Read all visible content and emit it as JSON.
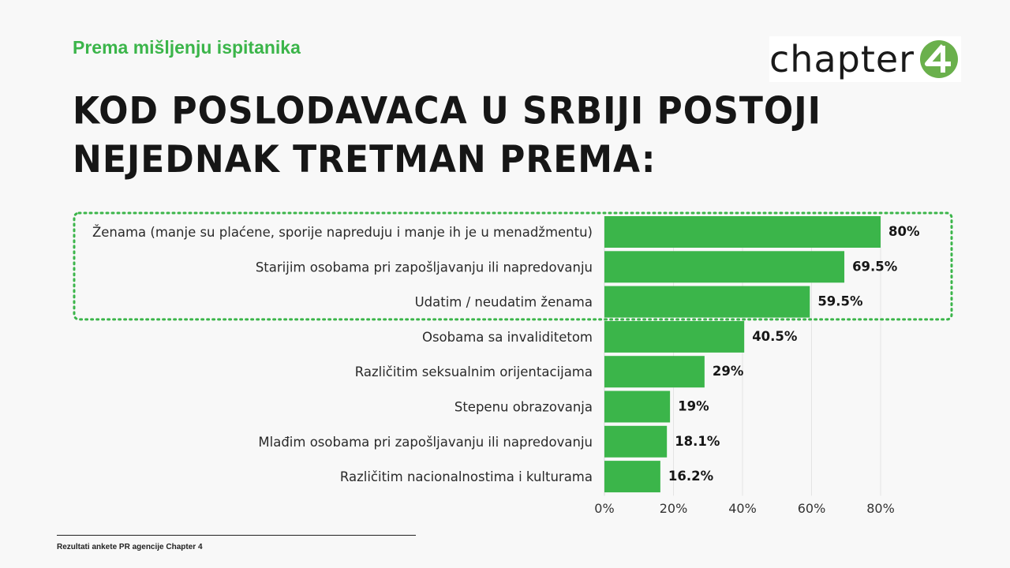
{
  "header": {
    "subtitle": "Prema mišljenju ispitanika",
    "title_line1": "KOD POSLODAVACA U SRBIJI POSTOJI",
    "title_line2": "NEJEDNAK TRETMAN PREMA:"
  },
  "logo": {
    "word": "chapter",
    "numeral": "4",
    "accent_color": "#6ab04c"
  },
  "footer": {
    "source": "Rezultati ankete PR agencije Chapter 4"
  },
  "colors": {
    "bar": "#3bb54a",
    "highlight": "#3bb54a",
    "text": "#161616"
  },
  "chart_data": {
    "type": "bar",
    "orientation": "horizontal",
    "categories": [
      "Ženama (manje su plaćene, sporije napreduju i manje ih je u menadžmentu)",
      "Starijim osobama pri zapošljavanju ili napredovanju",
      "Udatim / neudatim ženama",
      "Osobama sa invaliditetom",
      "Različitim seksualnim orijentacijama",
      "Stepenu obrazovanja",
      "Mlađim osobama pri zapošljavanju ili napredovanju",
      "Različitim nacionalnostima i kulturama"
    ],
    "values": [
      80,
      69.5,
      59.5,
      40.5,
      29,
      19,
      18.1,
      16.2
    ],
    "value_labels": [
      "80%",
      "69.5%",
      "59.5%",
      "40.5%",
      "29%",
      "19%",
      "18.1%",
      "16.2%"
    ],
    "xlim": [
      0,
      80
    ],
    "xticks": [
      0,
      20,
      40,
      60,
      80
    ],
    "xtick_labels": [
      "0%",
      "20%",
      "40%",
      "60%",
      "80%"
    ],
    "grid": true,
    "highlighted_top_n": 3
  }
}
